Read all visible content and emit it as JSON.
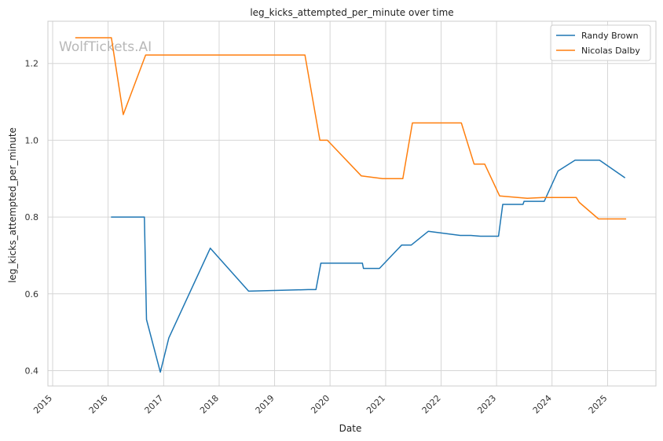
{
  "chart_data": {
    "type": "line",
    "title": "leg_kicks_attempted_per_minute over time",
    "xlabel": "Date",
    "ylabel": "leg_kicks_attempted_per_minute",
    "watermark": "WolfTickets.AI",
    "x_ticks": [
      "2015",
      "2016",
      "2017",
      "2018",
      "2019",
      "2020",
      "2021",
      "2022",
      "2023",
      "2024",
      "2025"
    ],
    "y_ticks": [
      "0.4",
      "0.6",
      "0.8",
      "1.0",
      "1.2"
    ],
    "ylim": [
      0.36,
      1.31
    ],
    "xlim": [
      "2014-12-01",
      "2025-11-15"
    ],
    "grid": true,
    "legend_position": "top-right",
    "series": [
      {
        "name": "Randy Brown",
        "color": "#1f77b4",
        "points": [
          [
            "2016-01-20",
            0.8
          ],
          [
            "2016-08-27",
            0.8
          ],
          [
            "2016-09-10",
            0.533
          ],
          [
            "2016-12-10",
            0.396
          ],
          [
            "2017-02-04",
            0.485
          ],
          [
            "2017-11-04",
            0.719
          ],
          [
            "2018-07-14",
            0.607
          ],
          [
            "2019-08-10",
            0.611
          ],
          [
            "2019-09-30",
            0.611
          ],
          [
            "2019-11-02",
            0.68
          ],
          [
            "2020-08-01",
            0.68
          ],
          [
            "2020-08-08",
            0.666
          ],
          [
            "2020-11-21",
            0.666
          ],
          [
            "2021-04-17",
            0.727
          ],
          [
            "2021-06-19",
            0.727
          ],
          [
            "2021-10-09",
            0.763
          ],
          [
            "2022-05-07",
            0.752
          ],
          [
            "2022-07-16",
            0.752
          ],
          [
            "2022-09-17",
            0.75
          ],
          [
            "2023-01-14",
            0.75
          ],
          [
            "2023-02-11",
            0.833
          ],
          [
            "2023-06-24",
            0.833
          ],
          [
            "2023-07-01",
            0.841
          ],
          [
            "2023-11-11",
            0.841
          ],
          [
            "2024-02-10",
            0.92
          ],
          [
            "2024-06-01",
            0.948
          ],
          [
            "2024-11-09",
            0.948
          ],
          [
            "2025-04-26",
            0.902
          ]
        ]
      },
      {
        "name": "Nicolas Dalby",
        "color": "#ff7f0e",
        "points": [
          [
            "2015-05-30",
            1.267
          ],
          [
            "2016-01-23",
            1.267
          ],
          [
            "2016-04-10",
            1.067
          ],
          [
            "2016-09-04",
            1.222
          ],
          [
            "2019-07-20",
            1.222
          ],
          [
            "2019-10-26",
            1.0
          ],
          [
            "2019-12-14",
            1.0
          ],
          [
            "2020-07-25",
            0.907
          ],
          [
            "2020-12-12",
            0.9
          ],
          [
            "2021-04-24",
            0.9
          ],
          [
            "2021-06-26",
            1.045
          ],
          [
            "2022-05-14",
            1.045
          ],
          [
            "2022-08-06",
            0.938
          ],
          [
            "2022-10-15",
            0.938
          ],
          [
            "2023-01-21",
            0.855
          ],
          [
            "2023-07-22",
            0.849
          ],
          [
            "2023-11-04",
            0.851
          ],
          [
            "2024-06-08",
            0.851
          ],
          [
            "2024-06-29",
            0.838
          ],
          [
            "2024-11-02",
            0.795
          ],
          [
            "2025-05-03",
            0.795
          ]
        ]
      }
    ]
  }
}
